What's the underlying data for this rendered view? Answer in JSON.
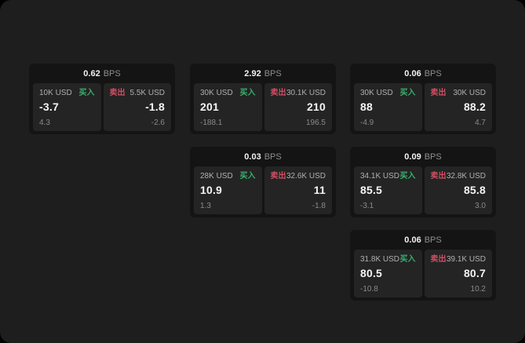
{
  "labels": {
    "bps_unit": "BPS",
    "buy": "买入",
    "sell": "卖出"
  },
  "colors": {
    "page_background": "#1e1e1e",
    "card_background": "#141414",
    "panel_background": "#242424",
    "buy_green": "#3cae6e",
    "sell_red": "#cf4f63"
  },
  "cards": [
    {
      "bps": "0.62",
      "buy": {
        "amount": "10K USD",
        "price": "-3.7",
        "sub": "4.3"
      },
      "sell": {
        "amount": "5.5K USD",
        "price": "-1.8",
        "sub": "-2.6"
      }
    },
    {
      "bps": "2.92",
      "buy": {
        "amount": "30K USD",
        "price": "201",
        "sub": "-188.1"
      },
      "sell": {
        "amount": "30.1K USD",
        "price": "210",
        "sub": "196.5"
      }
    },
    {
      "bps": "0.06",
      "buy": {
        "amount": "30K USD",
        "price": "88",
        "sub": "-4.9"
      },
      "sell": {
        "amount": "30K USD",
        "price": "88.2",
        "sub": "4.7"
      }
    },
    {
      "bps": "0.03",
      "buy": {
        "amount": "28K USD",
        "price": "10.9",
        "sub": "1.3"
      },
      "sell": {
        "amount": "32.6K USD",
        "price": "11",
        "sub": "-1.8"
      }
    },
    {
      "bps": "0.09",
      "buy": {
        "amount": "34.1K USD",
        "price": "85.5",
        "sub": "-3.1"
      },
      "sell": {
        "amount": "32.8K USD",
        "price": "85.8",
        "sub": "3.0"
      }
    },
    {
      "bps": "0.06",
      "buy": {
        "amount": "31.8K USD",
        "price": "80.5",
        "sub": "-10.8"
      },
      "sell": {
        "amount": "39.1K USD",
        "price": "80.7",
        "sub": "10.2"
      }
    }
  ]
}
